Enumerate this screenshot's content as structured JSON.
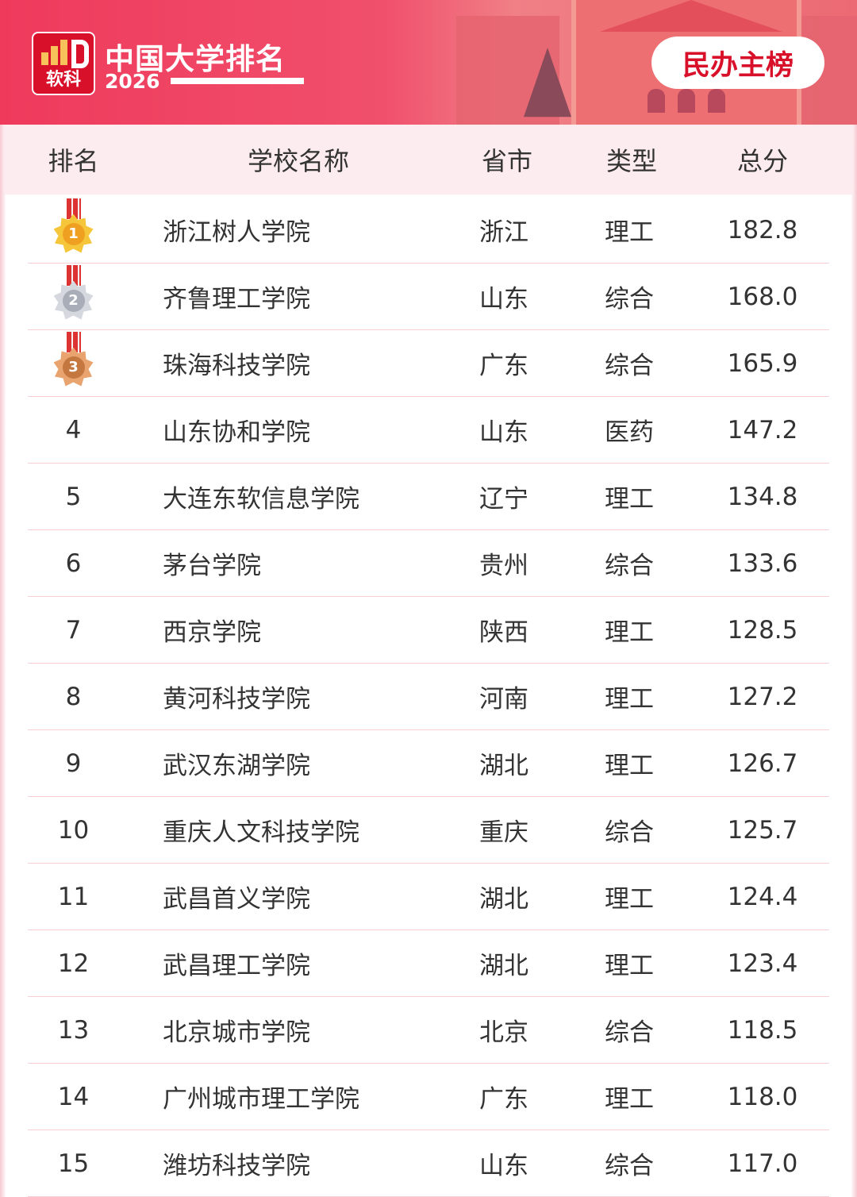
{
  "header": {
    "logo_text": "软科",
    "title": "中国大学排名",
    "year": "2026",
    "badge": "民办主榜"
  },
  "colors": {
    "accent": "#d8102a",
    "banner": "#ef3a5c",
    "header_row": "#fdecef",
    "gold": "#f5b52a",
    "silver": "#b9bec8",
    "bronze": "#d08a5a"
  },
  "columns": [
    "排名",
    "学校名称",
    "省市",
    "类型",
    "总分"
  ],
  "rows": [
    {
      "rank": "1",
      "name": "浙江树人学院",
      "province": "浙江",
      "type": "理工",
      "score": "182.8",
      "medal": "gold"
    },
    {
      "rank": "2",
      "name": "齐鲁理工学院",
      "province": "山东",
      "type": "综合",
      "score": "168.0",
      "medal": "silver"
    },
    {
      "rank": "3",
      "name": "珠海科技学院",
      "province": "广东",
      "type": "综合",
      "score": "165.9",
      "medal": "bronze"
    },
    {
      "rank": "4",
      "name": "山东协和学院",
      "province": "山东",
      "type": "医药",
      "score": "147.2"
    },
    {
      "rank": "5",
      "name": "大连东软信息学院",
      "province": "辽宁",
      "type": "理工",
      "score": "134.8"
    },
    {
      "rank": "6",
      "name": "茅台学院",
      "province": "贵州",
      "type": "综合",
      "score": "133.6"
    },
    {
      "rank": "7",
      "name": "西京学院",
      "province": "陕西",
      "type": "理工",
      "score": "128.5"
    },
    {
      "rank": "8",
      "name": "黄河科技学院",
      "province": "河南",
      "type": "理工",
      "score": "127.2"
    },
    {
      "rank": "9",
      "name": "武汉东湖学院",
      "province": "湖北",
      "type": "理工",
      "score": "126.7"
    },
    {
      "rank": "10",
      "name": "重庆人文科技学院",
      "province": "重庆",
      "type": "综合",
      "score": "125.7"
    },
    {
      "rank": "11",
      "name": "武昌首义学院",
      "province": "湖北",
      "type": "理工",
      "score": "124.4"
    },
    {
      "rank": "12",
      "name": "武昌理工学院",
      "province": "湖北",
      "type": "理工",
      "score": "123.4"
    },
    {
      "rank": "13",
      "name": "北京城市学院",
      "province": "北京",
      "type": "综合",
      "score": "118.5"
    },
    {
      "rank": "14",
      "name": "广州城市理工学院",
      "province": "广东",
      "type": "理工",
      "score": "118.0"
    },
    {
      "rank": "15",
      "name": "潍坊科技学院",
      "province": "山东",
      "type": "综合",
      "score": "117.0"
    }
  ]
}
